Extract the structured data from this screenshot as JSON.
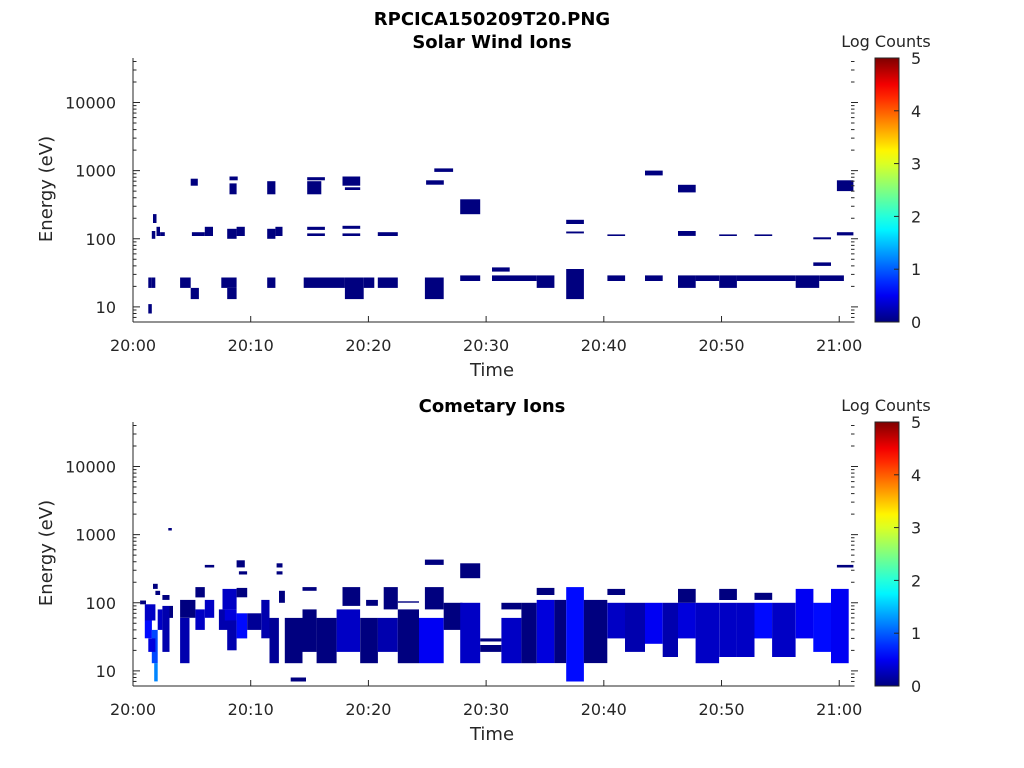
{
  "figure": {
    "title": "RPCICA150209T20.PNG"
  },
  "colors": {
    "colormap": [
      "#00007f",
      "#0000ff",
      "#00ffff",
      "#ffff00",
      "#ff0000",
      "#7f0000"
    ],
    "axis": "#262626",
    "background": "#ffffff"
  },
  "chart_data": [
    {
      "type": "heatmap",
      "title": "Solar Wind Ions",
      "xlabel": "Time",
      "ylabel": "Energy (eV)",
      "y_scale": "log",
      "xlim": [
        "20:00",
        "21:01"
      ],
      "ylim": [
        6,
        45000
      ],
      "x_ticks": [
        "20:00",
        "20:10",
        "20:20",
        "20:30",
        "20:40",
        "20:50",
        "21:00"
      ],
      "y_ticks": [
        "10",
        "100",
        "1000",
        "10000"
      ],
      "colorbar": {
        "label": "Log Counts",
        "range": [
          0,
          5
        ],
        "ticks": [
          "0",
          "1",
          "2",
          "3",
          "4",
          "5"
        ]
      },
      "cells": [
        [
          1.3,
          1.6,
          8,
          11,
          0
        ],
        [
          1.3,
          1.6,
          19,
          27,
          0
        ],
        [
          1.6,
          1.9,
          19,
          27,
          0
        ],
        [
          1.6,
          1.9,
          100,
          130,
          0
        ],
        [
          1.7,
          2.0,
          170,
          230,
          0
        ],
        [
          2.0,
          2.3,
          110,
          150,
          0
        ],
        [
          2.3,
          2.7,
          110,
          125,
          0
        ],
        [
          4.0,
          4.9,
          19,
          27,
          0
        ],
        [
          4.9,
          5.6,
          13,
          19,
          0
        ],
        [
          4.9,
          5.5,
          600,
          760,
          0
        ],
        [
          5.0,
          6.1,
          110,
          125,
          0
        ],
        [
          6.1,
          6.8,
          110,
          150,
          0
        ],
        [
          7.5,
          8.8,
          19,
          27,
          0
        ],
        [
          8.0,
          8.8,
          13,
          19,
          0
        ],
        [
          8.0,
          8.8,
          100,
          140,
          0
        ],
        [
          8.2,
          8.8,
          450,
          650,
          0
        ],
        [
          8.2,
          8.9,
          720,
          820,
          0
        ],
        [
          8.8,
          9.5,
          110,
          150,
          0
        ],
        [
          11.4,
          12.1,
          19,
          27,
          0
        ],
        [
          11.4,
          12.1,
          100,
          140,
          0
        ],
        [
          11.4,
          12.1,
          450,
          700,
          0
        ],
        [
          12.1,
          12.7,
          110,
          150,
          0
        ],
        [
          14.5,
          18.0,
          19,
          27,
          0
        ],
        [
          18.0,
          19.6,
          13,
          27,
          0
        ],
        [
          19.6,
          20.5,
          19,
          27,
          0
        ],
        [
          14.8,
          16.0,
          450,
          700,
          0
        ],
        [
          14.8,
          16.3,
          720,
          800,
          0
        ],
        [
          14.8,
          16.3,
          135,
          150,
          0
        ],
        [
          14.8,
          16.3,
          110,
          120,
          0
        ],
        [
          17.8,
          19.3,
          600,
          820,
          0
        ],
        [
          18.0,
          19.3,
          520,
          570,
          0
        ],
        [
          17.8,
          19.3,
          140,
          155,
          0
        ],
        [
          17.8,
          19.3,
          110,
          120,
          0
        ],
        [
          20.8,
          22.5,
          19,
          27,
          0
        ],
        [
          20.8,
          22.5,
          110,
          125,
          0
        ],
        [
          24.8,
          26.4,
          13,
          27,
          0
        ],
        [
          24.9,
          26.4,
          620,
          720,
          0
        ],
        [
          25.6,
          27.2,
          960,
          1080,
          0
        ],
        [
          27.8,
          29.5,
          24,
          29,
          0
        ],
        [
          27.8,
          29.5,
          230,
          380,
          0
        ],
        [
          30.5,
          32.0,
          33,
          38,
          0
        ],
        [
          30.5,
          34.3,
          24,
          29,
          0
        ],
        [
          34.3,
          35.8,
          19,
          29,
          0
        ],
        [
          36.8,
          38.3,
          13,
          36,
          0
        ],
        [
          36.8,
          38.3,
          165,
          190,
          0
        ],
        [
          36.8,
          38.3,
          120,
          128,
          0
        ],
        [
          40.3,
          41.8,
          24,
          29,
          0
        ],
        [
          40.3,
          41.8,
          110,
          116,
          0
        ],
        [
          43.5,
          45.0,
          24,
          29,
          0
        ],
        [
          43.5,
          45.0,
          850,
          1000,
          0
        ],
        [
          46.3,
          47.8,
          19,
          29,
          0
        ],
        [
          46.3,
          47.8,
          480,
          620,
          0
        ],
        [
          46.3,
          47.8,
          110,
          130,
          0
        ],
        [
          47.8,
          49.8,
          24,
          29,
          0
        ],
        [
          49.8,
          51.3,
          19,
          29,
          0
        ],
        [
          49.8,
          51.3,
          110,
          116,
          0
        ],
        [
          51.3,
          56.3,
          24,
          29,
          0
        ],
        [
          52.8,
          54.3,
          110,
          116,
          0
        ],
        [
          56.3,
          58.3,
          19,
          29,
          0
        ],
        [
          58.3,
          60.4,
          24,
          29,
          0
        ],
        [
          57.8,
          59.3,
          98,
          105,
          0
        ],
        [
          57.8,
          59.3,
          40,
          45,
          0
        ],
        [
          59.8,
          61.2,
          500,
          720,
          0
        ],
        [
          59.8,
          61.2,
          112,
          125,
          0
        ]
      ]
    },
    {
      "type": "heatmap",
      "title": "Cometary Ions",
      "xlabel": "Time",
      "ylabel": "Energy (eV)",
      "y_scale": "log",
      "xlim": [
        "20:00",
        "21:01"
      ],
      "ylim": [
        6,
        45000
      ],
      "x_ticks": [
        "20:00",
        "20:10",
        "20:20",
        "20:30",
        "20:40",
        "20:50",
        "21:00"
      ],
      "y_ticks": [
        "10",
        "100",
        "1000",
        "10000"
      ],
      "colorbar": {
        "label": "Log Counts",
        "range": [
          0,
          5
        ],
        "ticks": [
          "0",
          "1",
          "2",
          "3",
          "4",
          "5"
        ]
      },
      "cells": [
        [
          3.0,
          3.3,
          1150,
          1250,
          0
        ],
        [
          0.6,
          1.1,
          95,
          108,
          0
        ],
        [
          1.0,
          1.9,
          55,
          95,
          0.3
        ],
        [
          1.0,
          1.6,
          30,
          55,
          0.6
        ],
        [
          1.6,
          2.1,
          13,
          40,
          0.9
        ],
        [
          1.8,
          2.1,
          7,
          13,
          1.2
        ],
        [
          1.3,
          1.9,
          19,
          30,
          0.4
        ],
        [
          2.1,
          2.5,
          40,
          80,
          0.3
        ],
        [
          1.7,
          2.1,
          160,
          190,
          0
        ],
        [
          1.9,
          2.3,
          130,
          150,
          0
        ],
        [
          2.5,
          3.1,
          19,
          90,
          0.2
        ],
        [
          2.5,
          3.1,
          110,
          130,
          0
        ],
        [
          3.1,
          3.4,
          60,
          90,
          0
        ],
        [
          4.0,
          5.3,
          60,
          110,
          0
        ],
        [
          4.0,
          4.8,
          13,
          60,
          0.2
        ],
        [
          5.3,
          6.1,
          40,
          80,
          0.3
        ],
        [
          5.3,
          6.1,
          120,
          170,
          0
        ],
        [
          6.1,
          6.9,
          60,
          110,
          0.3
        ],
        [
          6.1,
          6.9,
          330,
          360,
          0
        ],
        [
          7.3,
          8.1,
          40,
          80,
          0.2
        ],
        [
          7.6,
          8.8,
          80,
          160,
          0.3
        ],
        [
          7.8,
          8.8,
          55,
          80,
          0.4
        ],
        [
          8.0,
          8.8,
          20,
          55,
          0.2
        ],
        [
          8.8,
          9.7,
          30,
          70,
          0.6
        ],
        [
          8.8,
          9.7,
          120,
          165,
          0
        ],
        [
          8.8,
          9.5,
          330,
          420,
          0
        ],
        [
          9.0,
          9.7,
          260,
          290,
          0
        ],
        [
          9.7,
          10.9,
          40,
          70,
          0.1
        ],
        [
          10.9,
          11.6,
          30,
          110,
          0.2
        ],
        [
          11.6,
          12.4,
          13,
          60,
          0.1
        ],
        [
          12.2,
          12.7,
          330,
          380,
          0
        ],
        [
          12.2,
          12.7,
          260,
          290,
          0
        ],
        [
          12.4,
          12.9,
          100,
          150,
          0
        ],
        [
          12.9,
          14.4,
          13,
          60,
          0
        ],
        [
          13.4,
          14.7,
          7,
          8,
          0
        ],
        [
          14.4,
          15.6,
          19,
          80,
          0
        ],
        [
          14.4,
          15.6,
          150,
          170,
          0
        ],
        [
          15.6,
          17.3,
          13,
          60,
          0
        ],
        [
          17.3,
          19.3,
          19,
          80,
          0.3
        ],
        [
          17.8,
          19.3,
          90,
          170,
          0
        ],
        [
          19.3,
          20.8,
          13,
          60,
          0
        ],
        [
          19.8,
          20.8,
          90,
          110,
          0
        ],
        [
          20.8,
          22.5,
          19,
          60,
          0.2
        ],
        [
          21.3,
          22.5,
          80,
          170,
          0
        ],
        [
          22.5,
          24.3,
          13,
          80,
          0
        ],
        [
          22.5,
          24.3,
          100,
          105,
          0
        ],
        [
          24.3,
          26.4,
          13,
          60,
          0.5
        ],
        [
          24.8,
          26.4,
          80,
          170,
          0
        ],
        [
          24.8,
          26.4,
          360,
          430,
          0
        ],
        [
          26.4,
          28.0,
          40,
          100,
          0
        ],
        [
          27.8,
          29.5,
          13,
          100,
          0.3
        ],
        [
          27.8,
          29.5,
          230,
          380,
          0
        ],
        [
          29.5,
          31.3,
          19,
          24,
          0
        ],
        [
          29.5,
          31.3,
          27,
          30,
          0
        ],
        [
          31.3,
          33.0,
          13,
          60,
          0.3
        ],
        [
          31.3,
          33.0,
          80,
          100,
          0
        ],
        [
          33.0,
          34.3,
          13,
          100,
          0
        ],
        [
          34.3,
          35.8,
          13,
          110,
          0.4
        ],
        [
          34.3,
          35.8,
          130,
          165,
          0
        ],
        [
          35.8,
          36.8,
          13,
          110,
          0
        ],
        [
          36.8,
          38.3,
          7,
          170,
          0.6
        ],
        [
          38.3,
          40.3,
          13,
          110,
          0
        ],
        [
          40.3,
          41.8,
          30,
          100,
          0.3
        ],
        [
          40.3,
          41.8,
          130,
          160,
          0
        ],
        [
          41.8,
          43.5,
          19,
          100,
          0.2
        ],
        [
          43.5,
          45.0,
          25,
          100,
          0.5
        ],
        [
          45.0,
          46.3,
          16,
          100,
          0.2
        ],
        [
          46.3,
          47.8,
          30,
          100,
          0.4
        ],
        [
          46.3,
          47.8,
          100,
          160,
          0
        ],
        [
          47.8,
          49.8,
          13,
          100,
          0.3
        ],
        [
          49.8,
          51.3,
          16,
          100,
          0.3
        ],
        [
          49.8,
          51.3,
          110,
          160,
          0
        ],
        [
          51.3,
          52.8,
          16,
          100,
          0.3
        ],
        [
          52.8,
          54.3,
          30,
          100,
          0.6
        ],
        [
          52.8,
          54.3,
          110,
          140,
          0
        ],
        [
          54.3,
          56.3,
          16,
          100,
          0.3
        ],
        [
          56.3,
          57.8,
          30,
          160,
          0.5
        ],
        [
          57.8,
          59.3,
          19,
          100,
          0.6
        ],
        [
          59.3,
          60.8,
          13,
          160,
          0.5
        ],
        [
          59.8,
          61.2,
          330,
          360,
          0
        ]
      ]
    }
  ]
}
